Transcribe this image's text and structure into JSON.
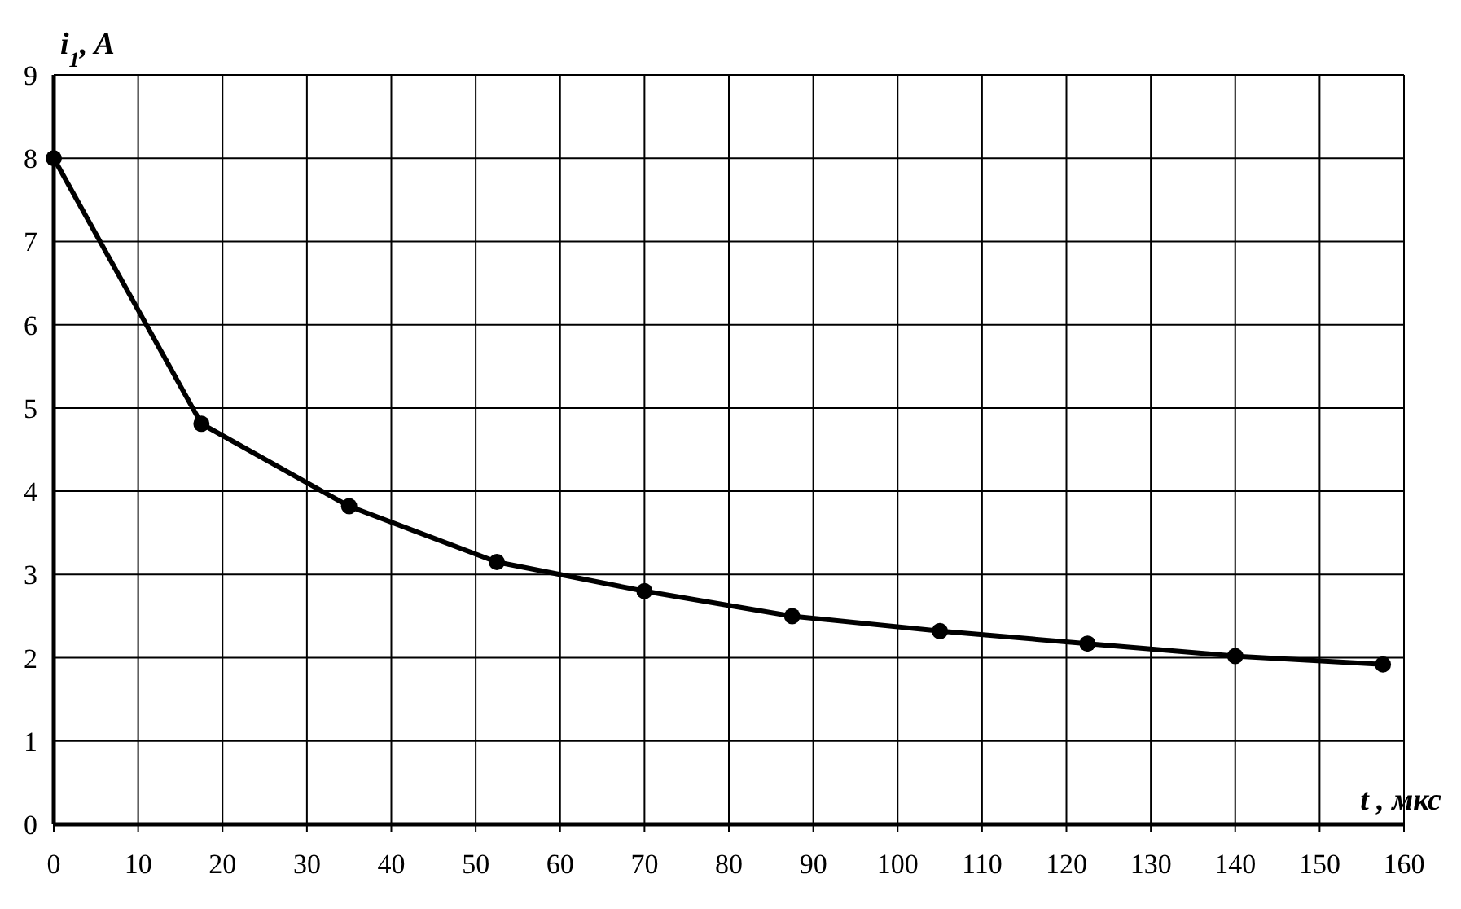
{
  "chart_data": {
    "type": "line",
    "xlabel": "t , мкс",
    "ylabel": "i$_{1}$, A",
    "x": [
      0,
      17.5,
      35,
      52.5,
      70,
      87.5,
      105,
      122.5,
      140,
      157.5
    ],
    "series": [
      {
        "color": "#000000",
        "values": [
          8.0,
          4.81,
          3.82,
          3.15,
          2.8,
          2.5,
          2.32,
          2.17,
          2.02,
          1.92
        ]
      }
    ],
    "xlim": [
      0,
      160
    ],
    "xticks": [
      0,
      10,
      20,
      30,
      40,
      50,
      60,
      70,
      80,
      90,
      100,
      110,
      120,
      130,
      140,
      150,
      160
    ],
    "ylim": [
      0,
      9
    ],
    "yticks": [
      0,
      1,
      2,
      3,
      4,
      5,
      6,
      7,
      8,
      9
    ],
    "grid": true,
    "marker": "circle",
    "line_style": "solid"
  }
}
